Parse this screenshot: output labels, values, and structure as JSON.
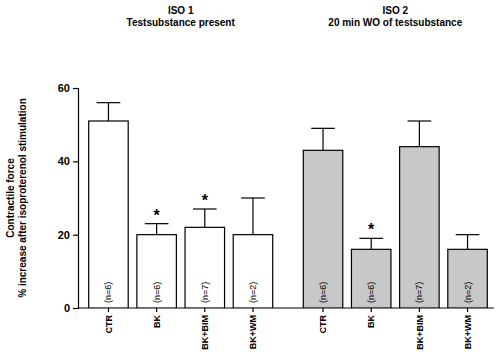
{
  "chart_data": {
    "type": "bar",
    "ylabel": [
      "Contractile force",
      "% increase after isoproterenol stimulation"
    ],
    "ylim": [
      0,
      60
    ],
    "yticks": [
      0,
      20,
      40,
      60
    ],
    "groups": [
      {
        "title": [
          "ISO 1",
          "Testsubstance present"
        ],
        "color": "#ffffff",
        "categories": [
          "CTR",
          "BK",
          "BK+BIM",
          "BK+WM"
        ],
        "values": [
          51,
          20,
          22,
          20
        ],
        "errors": [
          5,
          3,
          5,
          10
        ],
        "n_labels": [
          "(n=6)",
          "(n=6)",
          "(n=7)",
          "(n=2)"
        ],
        "annotations": [
          null,
          "*",
          "*",
          null
        ]
      },
      {
        "title": [
          "ISO 2",
          "20 min WO of testsubstance"
        ],
        "color": "#c8c8c8",
        "categories": [
          "CTR",
          "BK",
          "BK+BIM",
          "BK+WM"
        ],
        "values": [
          43,
          16,
          44,
          16
        ],
        "errors": [
          6,
          3,
          7,
          4
        ],
        "n_labels": [
          "(n=6)",
          "(n=6)",
          "(n=7)",
          "(n=2)"
        ],
        "annotations": [
          null,
          "*",
          null,
          null
        ]
      }
    ]
  }
}
